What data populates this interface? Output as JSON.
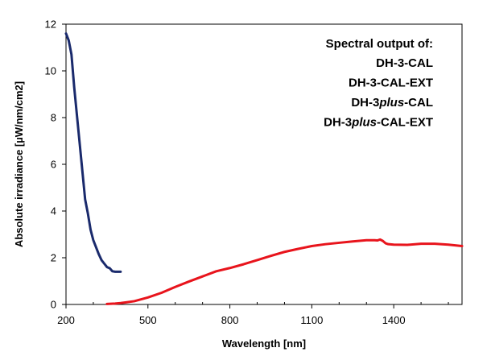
{
  "chart_data": {
    "type": "line",
    "title": "",
    "xlabel": "Wavelength [nm]",
    "ylabel": "Absolute irradiance [µW/nm/cm2]",
    "xlim": [
      200,
      1650
    ],
    "ylim": [
      0,
      12
    ],
    "xticks": [
      200,
      500,
      800,
      1100,
      1400
    ],
    "yticks": [
      0,
      2,
      4,
      6,
      8,
      10,
      12
    ],
    "grid": false,
    "legend": "none",
    "annotation": {
      "heading": "Spectral output of:",
      "lines": [
        {
          "parts": [
            {
              "text": "DH-3-CAL",
              "italic": false
            }
          ]
        },
        {
          "parts": [
            {
              "text": "DH-3-CAL-EXT",
              "italic": false
            }
          ]
        },
        {
          "parts": [
            {
              "text": "DH-3",
              "italic": false
            },
            {
              "text": "plus",
              "italic": true
            },
            {
              "text": "-CAL",
              "italic": false
            }
          ]
        },
        {
          "parts": [
            {
              "text": "DH-3",
              "italic": false
            },
            {
              "text": "plus",
              "italic": true
            },
            {
              "text": "-CAL-EXT",
              "italic": false
            }
          ]
        }
      ]
    },
    "series": [
      {
        "color": "#1a2a6c",
        "x": [
          200,
          210,
          220,
          230,
          240,
          250,
          260,
          270,
          280,
          290,
          300,
          310,
          320,
          330,
          340,
          350,
          360,
          370,
          380,
          390,
          400
        ],
        "y": [
          11.6,
          11.3,
          10.7,
          9.3,
          8.1,
          6.9,
          5.7,
          4.5,
          3.9,
          3.2,
          2.75,
          2.45,
          2.15,
          1.9,
          1.75,
          1.6,
          1.55,
          1.42,
          1.4,
          1.4,
          1.4
        ]
      },
      {
        "color": "#e8141c",
        "x": [
          350,
          380,
          400,
          420,
          450,
          500,
          550,
          600,
          650,
          700,
          750,
          800,
          850,
          900,
          950,
          1000,
          1050,
          1100,
          1150,
          1200,
          1250,
          1300,
          1330,
          1340,
          1350,
          1360,
          1370,
          1380,
          1400,
          1450,
          1500,
          1550,
          1600,
          1650
        ],
        "y": [
          0.02,
          0.04,
          0.06,
          0.09,
          0.14,
          0.3,
          0.5,
          0.75,
          0.98,
          1.2,
          1.42,
          1.56,
          1.72,
          1.9,
          2.08,
          2.25,
          2.38,
          2.5,
          2.58,
          2.64,
          2.7,
          2.75,
          2.75,
          2.74,
          2.78,
          2.72,
          2.62,
          2.58,
          2.56,
          2.55,
          2.6,
          2.6,
          2.56,
          2.5
        ]
      }
    ]
  }
}
